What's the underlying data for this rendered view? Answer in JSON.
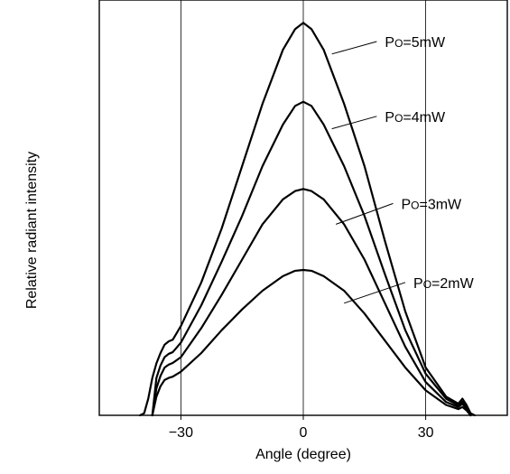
{
  "chart_data": {
    "type": "line",
    "title": "",
    "xlabel": "Angle (degree)",
    "ylabel": "Relative radiant intensity",
    "xlim": [
      -50,
      50
    ],
    "ylim": [
      0,
      1.0
    ],
    "x_ticks": [
      {
        "value": -30,
        "label": "−30"
      },
      {
        "value": 0,
        "label": "0"
      },
      {
        "value": 30,
        "label": "30"
      }
    ],
    "vertical_grid": [
      -30,
      0,
      30
    ],
    "series": [
      {
        "name": "PO=5mW",
        "name_prefix": "P",
        "name_sub": "O",
        "name_suffix": "=5mW",
        "label_x": 20,
        "label_y": 0.9,
        "leader_from": [
          7,
          0.87
        ],
        "leader_to": [
          18,
          0.9
        ],
        "points": [
          [
            -40,
            0.0
          ],
          [
            -39,
            0.005
          ],
          [
            -38,
            0.04
          ],
          [
            -37,
            0.09
          ],
          [
            -36,
            0.125
          ],
          [
            -35,
            0.15
          ],
          [
            -34,
            0.17
          ],
          [
            -33,
            0.178
          ],
          [
            -32,
            0.182
          ],
          [
            -30,
            0.215
          ],
          [
            -25,
            0.32
          ],
          [
            -20,
            0.45
          ],
          [
            -15,
            0.6
          ],
          [
            -10,
            0.75
          ],
          [
            -5,
            0.88
          ],
          [
            -2,
            0.93
          ],
          [
            0,
            0.945
          ],
          [
            2,
            0.93
          ],
          [
            5,
            0.88
          ],
          [
            10,
            0.75
          ],
          [
            15,
            0.6
          ],
          [
            20,
            0.42
          ],
          [
            25,
            0.25
          ],
          [
            30,
            0.115
          ],
          [
            35,
            0.045
          ],
          [
            38,
            0.028
          ],
          [
            39,
            0.04
          ],
          [
            40,
            0.025
          ],
          [
            41,
            0.005
          ],
          [
            42,
            0.0
          ]
        ]
      },
      {
        "name": "PO=4mW",
        "name_prefix": "P",
        "name_sub": "O",
        "name_suffix": "=4mW",
        "label_x": 20,
        "label_y": 0.72,
        "leader_from": [
          7,
          0.69
        ],
        "leader_to": [
          18,
          0.72
        ],
        "points": [
          [
            -37,
            0.0
          ],
          [
            -36,
            0.09
          ],
          [
            -35,
            0.12
          ],
          [
            -34,
            0.14
          ],
          [
            -33,
            0.148
          ],
          [
            -32,
            0.152
          ],
          [
            -30,
            0.175
          ],
          [
            -25,
            0.265
          ],
          [
            -20,
            0.37
          ],
          [
            -15,
            0.48
          ],
          [
            -10,
            0.6
          ],
          [
            -5,
            0.7
          ],
          [
            -2,
            0.745
          ],
          [
            0,
            0.755
          ],
          [
            2,
            0.745
          ],
          [
            5,
            0.7
          ],
          [
            10,
            0.6
          ],
          [
            15,
            0.48
          ],
          [
            20,
            0.34
          ],
          [
            25,
            0.205
          ],
          [
            30,
            0.1
          ],
          [
            35,
            0.04
          ],
          [
            38,
            0.024
          ],
          [
            39,
            0.033
          ],
          [
            40,
            0.02
          ],
          [
            41,
            0.0
          ]
        ]
      },
      {
        "name": "PO=3mW",
        "name_prefix": "P",
        "name_sub": "O",
        "name_suffix": "=3mW",
        "label_x": 24,
        "label_y": 0.51,
        "leader_from": [
          8,
          0.46
        ],
        "leader_to": [
          22,
          0.51
        ],
        "points": [
          [
            -37,
            0.0
          ],
          [
            -36,
            0.065
          ],
          [
            -35,
            0.095
          ],
          [
            -34,
            0.115
          ],
          [
            -33,
            0.122
          ],
          [
            -32,
            0.126
          ],
          [
            -30,
            0.14
          ],
          [
            -25,
            0.21
          ],
          [
            -20,
            0.29
          ],
          [
            -15,
            0.375
          ],
          [
            -10,
            0.46
          ],
          [
            -5,
            0.52
          ],
          [
            -2,
            0.54
          ],
          [
            0,
            0.545
          ],
          [
            2,
            0.54
          ],
          [
            5,
            0.52
          ],
          [
            10,
            0.46
          ],
          [
            15,
            0.375
          ],
          [
            20,
            0.27
          ],
          [
            25,
            0.165
          ],
          [
            30,
            0.08
          ],
          [
            35,
            0.032
          ],
          [
            38,
            0.02
          ],
          [
            39,
            0.028
          ],
          [
            40,
            0.016
          ],
          [
            41,
            0.0
          ]
        ]
      },
      {
        "name": "PO=2mW",
        "name_prefix": "P",
        "name_sub": "O",
        "name_suffix": "=2mW",
        "label_x": 27,
        "label_y": 0.32,
        "leader_from": [
          10,
          0.27
        ],
        "leader_to": [
          25,
          0.32
        ],
        "points": [
          [
            -37,
            0.0
          ],
          [
            -36,
            0.045
          ],
          [
            -35,
            0.07
          ],
          [
            -34,
            0.085
          ],
          [
            -33,
            0.09
          ],
          [
            -32,
            0.093
          ],
          [
            -30,
            0.105
          ],
          [
            -25,
            0.15
          ],
          [
            -20,
            0.205
          ],
          [
            -15,
            0.255
          ],
          [
            -10,
            0.3
          ],
          [
            -5,
            0.335
          ],
          [
            -2,
            0.348
          ],
          [
            0,
            0.35
          ],
          [
            2,
            0.348
          ],
          [
            5,
            0.335
          ],
          [
            10,
            0.3
          ],
          [
            15,
            0.245
          ],
          [
            20,
            0.18
          ],
          [
            25,
            0.115
          ],
          [
            30,
            0.06
          ],
          [
            35,
            0.025
          ],
          [
            38,
            0.015
          ],
          [
            39,
            0.02
          ],
          [
            40,
            0.012
          ],
          [
            41,
            0.0
          ]
        ]
      }
    ],
    "grid": false,
    "legend": "inline annotations"
  }
}
